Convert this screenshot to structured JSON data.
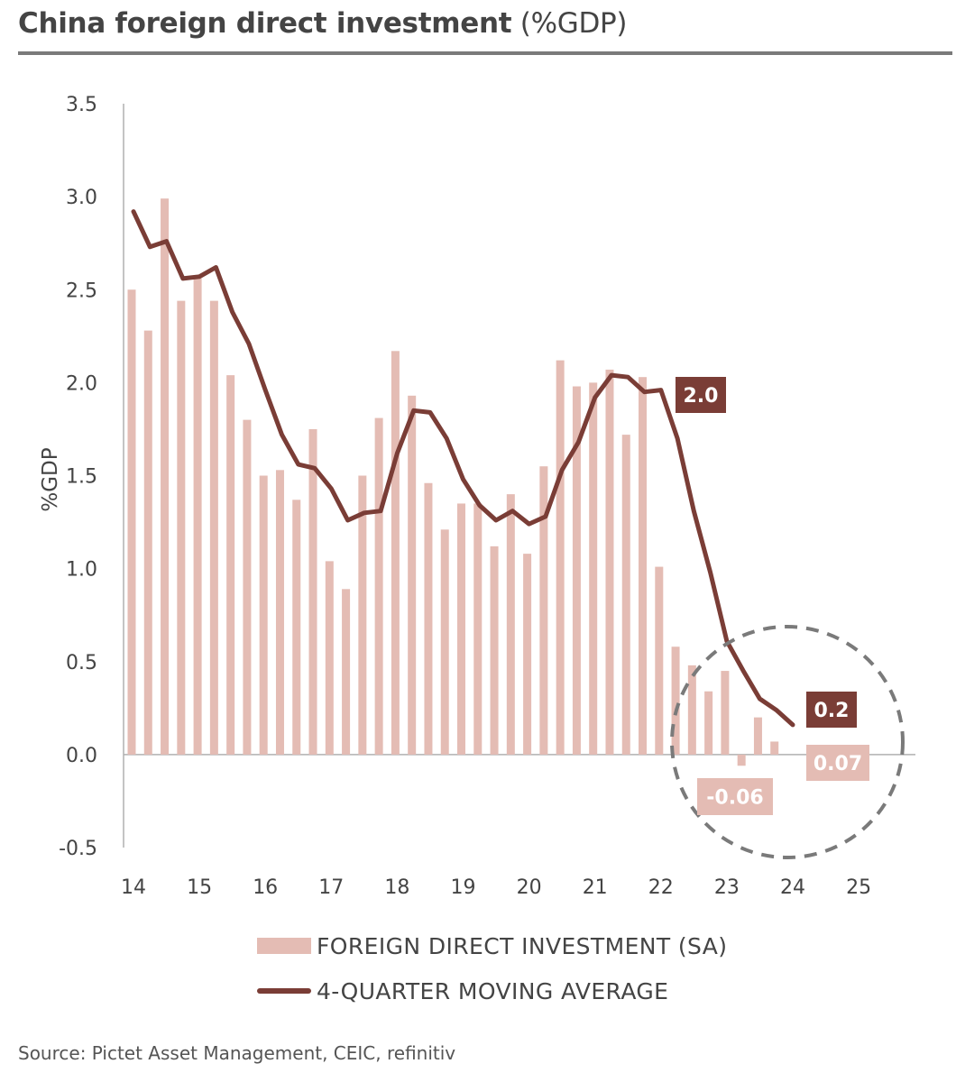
{
  "title_bold": "China foreign direct investment",
  "title_rest": "(%GDP)",
  "source": "Source: Pictet Asset Management, CEIC, refinitiv",
  "chart_data": {
    "type": "bar",
    "ylabel": "%GDP",
    "ylim": [
      -0.5,
      3.5
    ],
    "yticks": [
      "3.5",
      "3.0",
      "2.5",
      "2.0",
      "1.5",
      "1.0",
      "0.5",
      "0.0",
      "-0.5"
    ],
    "xticks": [
      "14",
      "15",
      "16",
      "17",
      "18",
      "19",
      "20",
      "21",
      "22",
      "23",
      "24",
      "25"
    ],
    "grid": false,
    "series": [
      {
        "name": "FOREIGN DIRECT INVESTMENT (SA)",
        "type": "bar",
        "color": "#e4bcb4",
        "values": [
          2.5,
          2.28,
          2.99,
          2.44,
          2.56,
          2.44,
          2.04,
          1.8,
          1.5,
          1.53,
          1.37,
          1.75,
          1.04,
          0.89,
          1.5,
          1.81,
          2.17,
          1.93,
          1.46,
          1.21,
          1.35,
          1.35,
          1.12,
          1.4,
          1.08,
          1.55,
          2.12,
          1.98,
          2.0,
          2.07,
          1.72,
          2.03,
          1.01,
          0.58,
          0.48,
          0.34,
          0.45,
          -0.06,
          0.2,
          0.07
        ]
      },
      {
        "name": "4-QUARTER MOVING AVERAGE",
        "type": "line",
        "color": "#7a3d36",
        "values": [
          2.92,
          2.73,
          2.76,
          2.56,
          2.57,
          2.62,
          2.38,
          2.21,
          1.96,
          1.72,
          1.56,
          1.54,
          1.43,
          1.26,
          1.3,
          1.31,
          1.62,
          1.85,
          1.84,
          1.7,
          1.48,
          1.34,
          1.26,
          1.31,
          1.24,
          1.28,
          1.53,
          1.68,
          1.92,
          2.04,
          2.03,
          1.95,
          1.96,
          1.7,
          1.31,
          0.98,
          0.61,
          0.45,
          0.3,
          0.24,
          0.16
        ]
      }
    ],
    "annotations": [
      {
        "label": "2.0",
        "style": "dark"
      },
      {
        "label": "0.2",
        "style": "dark"
      },
      {
        "label": "0.07",
        "style": "light"
      },
      {
        "label": "-0.06",
        "style": "light"
      }
    ]
  }
}
